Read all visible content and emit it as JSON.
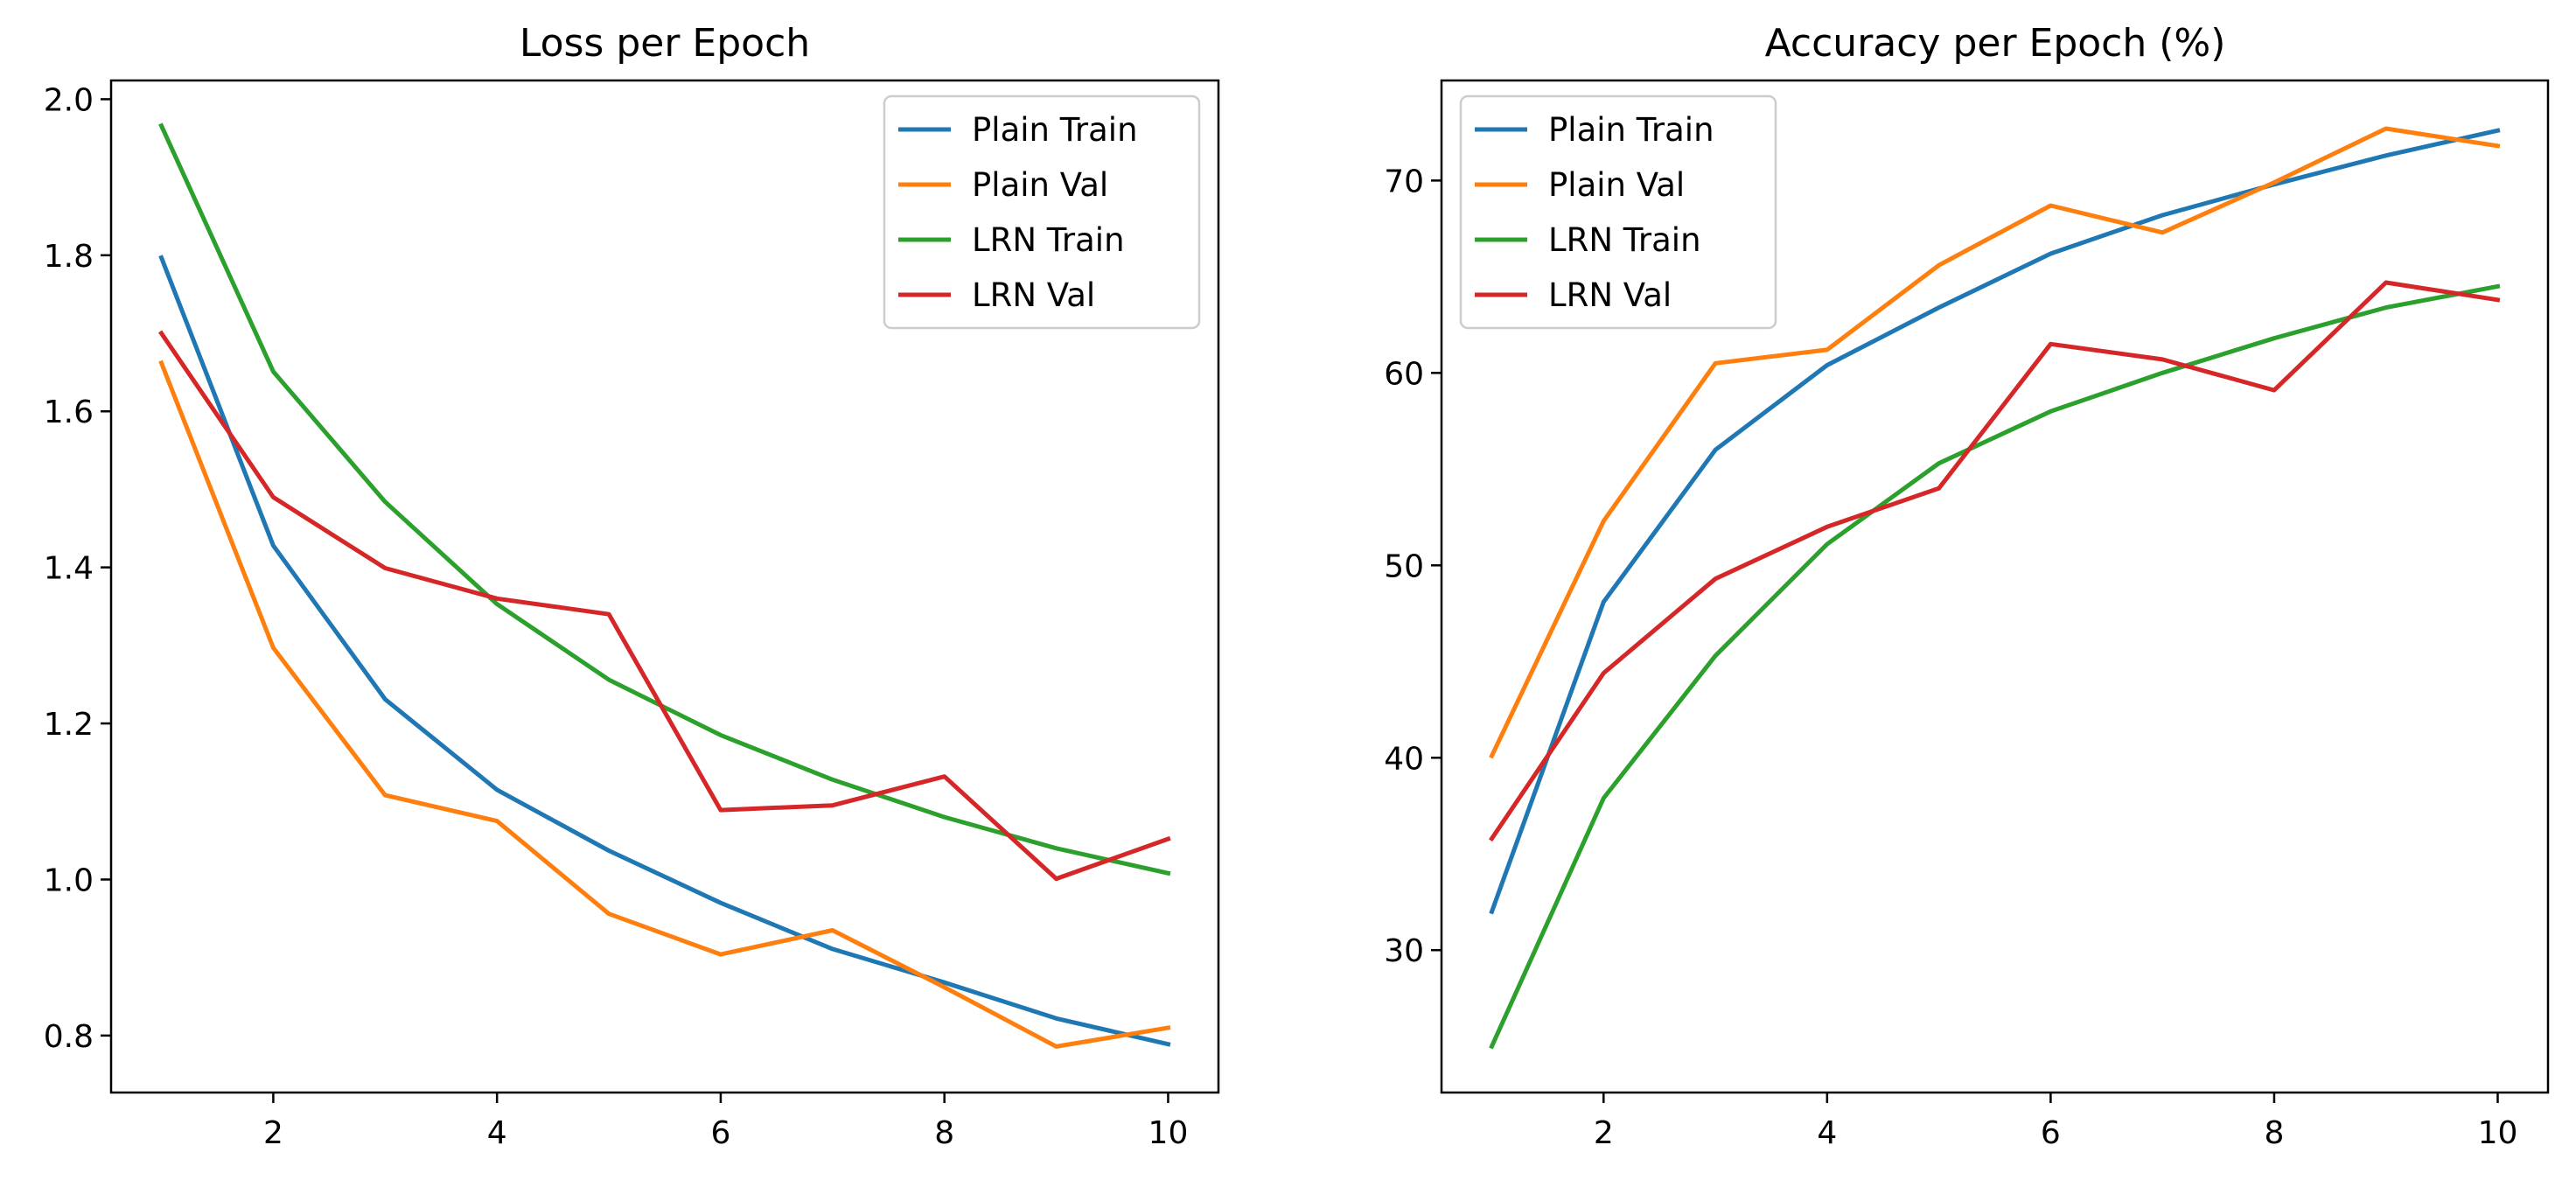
{
  "chart_data": [
    {
      "type": "line",
      "title": "Loss per Epoch",
      "xlabel": "",
      "ylabel": "",
      "x": [
        1,
        2,
        3,
        4,
        5,
        6,
        7,
        8,
        9,
        10
      ],
      "xlim": [
        0.55,
        10.45
      ],
      "ylim": [
        0.727,
        2.024
      ],
      "xticks": [
        2,
        4,
        6,
        8,
        10
      ],
      "yticks": [
        0.8,
        1.0,
        1.2,
        1.4,
        1.6,
        1.8,
        2.0
      ],
      "ytick_labels": [
        "0.8",
        "1.0",
        "1.2",
        "1.4",
        "1.6",
        "1.8",
        "2.0"
      ],
      "grid": false,
      "legend_position": "top-right",
      "series": [
        {
          "name": "Plain Train",
          "color": "#1f77b4",
          "values": [
            1.797,
            1.428,
            1.231,
            1.115,
            1.037,
            0.97,
            0.911,
            0.868,
            0.822,
            0.789
          ]
        },
        {
          "name": "Plain Val",
          "color": "#ff7f0e",
          "values": [
            1.662,
            1.297,
            1.108,
            1.075,
            0.956,
            0.904,
            0.935,
            0.862,
            0.786,
            0.81
          ]
        },
        {
          "name": "LRN Train",
          "color": "#2ca02c",
          "values": [
            1.966,
            1.651,
            1.484,
            1.353,
            1.256,
            1.185,
            1.128,
            1.08,
            1.04,
            1.008
          ]
        },
        {
          "name": "LRN Val",
          "color": "#d62728",
          "values": [
            1.7,
            1.49,
            1.399,
            1.36,
            1.34,
            1.089,
            1.095,
            1.132,
            1.001,
            1.052
          ]
        }
      ]
    },
    {
      "type": "line",
      "title": "Accuracy per Epoch (%)",
      "xlabel": "",
      "ylabel": "",
      "x": [
        1,
        2,
        3,
        4,
        5,
        6,
        7,
        8,
        9,
        10
      ],
      "xlim": [
        0.55,
        10.45
      ],
      "ylim": [
        22.6,
        75.2
      ],
      "xticks": [
        2,
        4,
        6,
        8,
        10
      ],
      "yticks": [
        30,
        40,
        50,
        60,
        70
      ],
      "ytick_labels": [
        "30",
        "40",
        "50",
        "60",
        "70"
      ],
      "grid": false,
      "legend_position": "top-left",
      "series": [
        {
          "name": "Plain Train",
          "color": "#1f77b4",
          "values": [
            32.0,
            48.1,
            56.0,
            60.4,
            63.4,
            66.2,
            68.2,
            69.8,
            71.3,
            72.6
          ]
        },
        {
          "name": "Plain Val",
          "color": "#ff7f0e",
          "values": [
            40.1,
            52.3,
            60.5,
            61.2,
            65.6,
            68.7,
            67.3,
            69.9,
            72.7,
            71.8
          ]
        },
        {
          "name": "LRN Train",
          "color": "#2ca02c",
          "values": [
            25.0,
            37.9,
            45.3,
            51.1,
            55.3,
            58.0,
            60.0,
            61.8,
            63.4,
            64.5
          ]
        },
        {
          "name": "LRN Val",
          "color": "#d62728",
          "values": [
            35.8,
            44.4,
            49.3,
            52.0,
            54.0,
            61.5,
            60.7,
            59.1,
            64.7,
            63.8
          ]
        }
      ]
    }
  ]
}
